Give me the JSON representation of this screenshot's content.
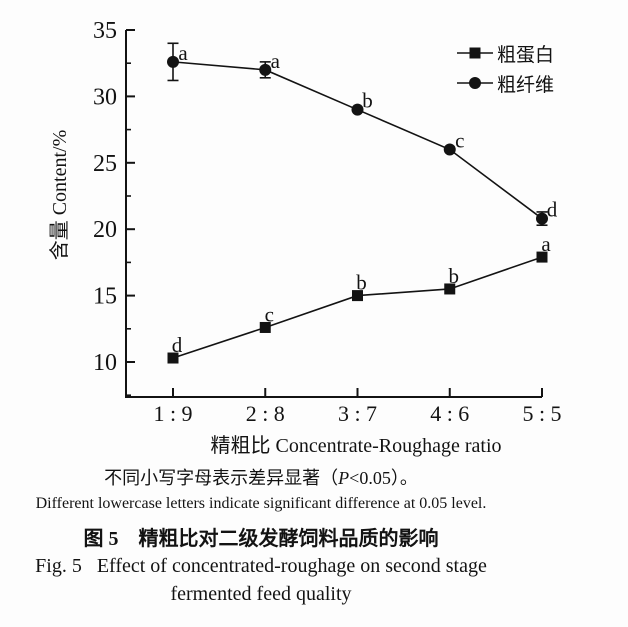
{
  "chart_data": {
    "type": "line",
    "categories": [
      "1 : 9",
      "2 : 8",
      "3 : 7",
      "4 : 6",
      "5 : 5"
    ],
    "series": [
      {
        "name": "粗蛋白",
        "key": "crude-protein",
        "marker": "square",
        "values": [
          10.3,
          12.6,
          15.0,
          15.5,
          17.9
        ],
        "errors": [
          0,
          0,
          0,
          0,
          0
        ],
        "letters": [
          "d",
          "c",
          "b",
          "b",
          "a"
        ]
      },
      {
        "name": "粗纤维",
        "key": "crude-fiber",
        "marker": "circle",
        "values": [
          32.6,
          32.0,
          29.0,
          26.0,
          20.8
        ],
        "errors": [
          1.4,
          0.6,
          0,
          0,
          0.5
        ],
        "letters": [
          "a",
          "a",
          "b",
          "c",
          "d"
        ]
      }
    ],
    "xlabel": "精粗比 Concentrate-Roughage ratio",
    "ylabel": "含量 Content/%",
    "y_ticks": [
      35,
      30,
      25,
      20,
      15,
      10
    ],
    "y_minor_ticks": [
      32.5,
      27.5,
      22.5,
      17.5,
      12.5,
      7.5
    ],
    "ylim": [
      7.4,
      35
    ],
    "grid": false,
    "legend_position": "top-right",
    "ink_color": "#131313"
  },
  "caption": {
    "note_zh_pre": "不同小写字母表示差异显著（",
    "note_zh_p": "P",
    "note_zh_post": "<0.05）。",
    "note_en": "Different lowercase letters indicate significant difference at 0.05 level.",
    "title_zh": "图 5　精粗比对二级发酵饲料品质的影响",
    "title_en_line1": "Fig. 5   Effect of concentrated-roughage on second stage",
    "title_en_line2": "fermented feed quality"
  }
}
